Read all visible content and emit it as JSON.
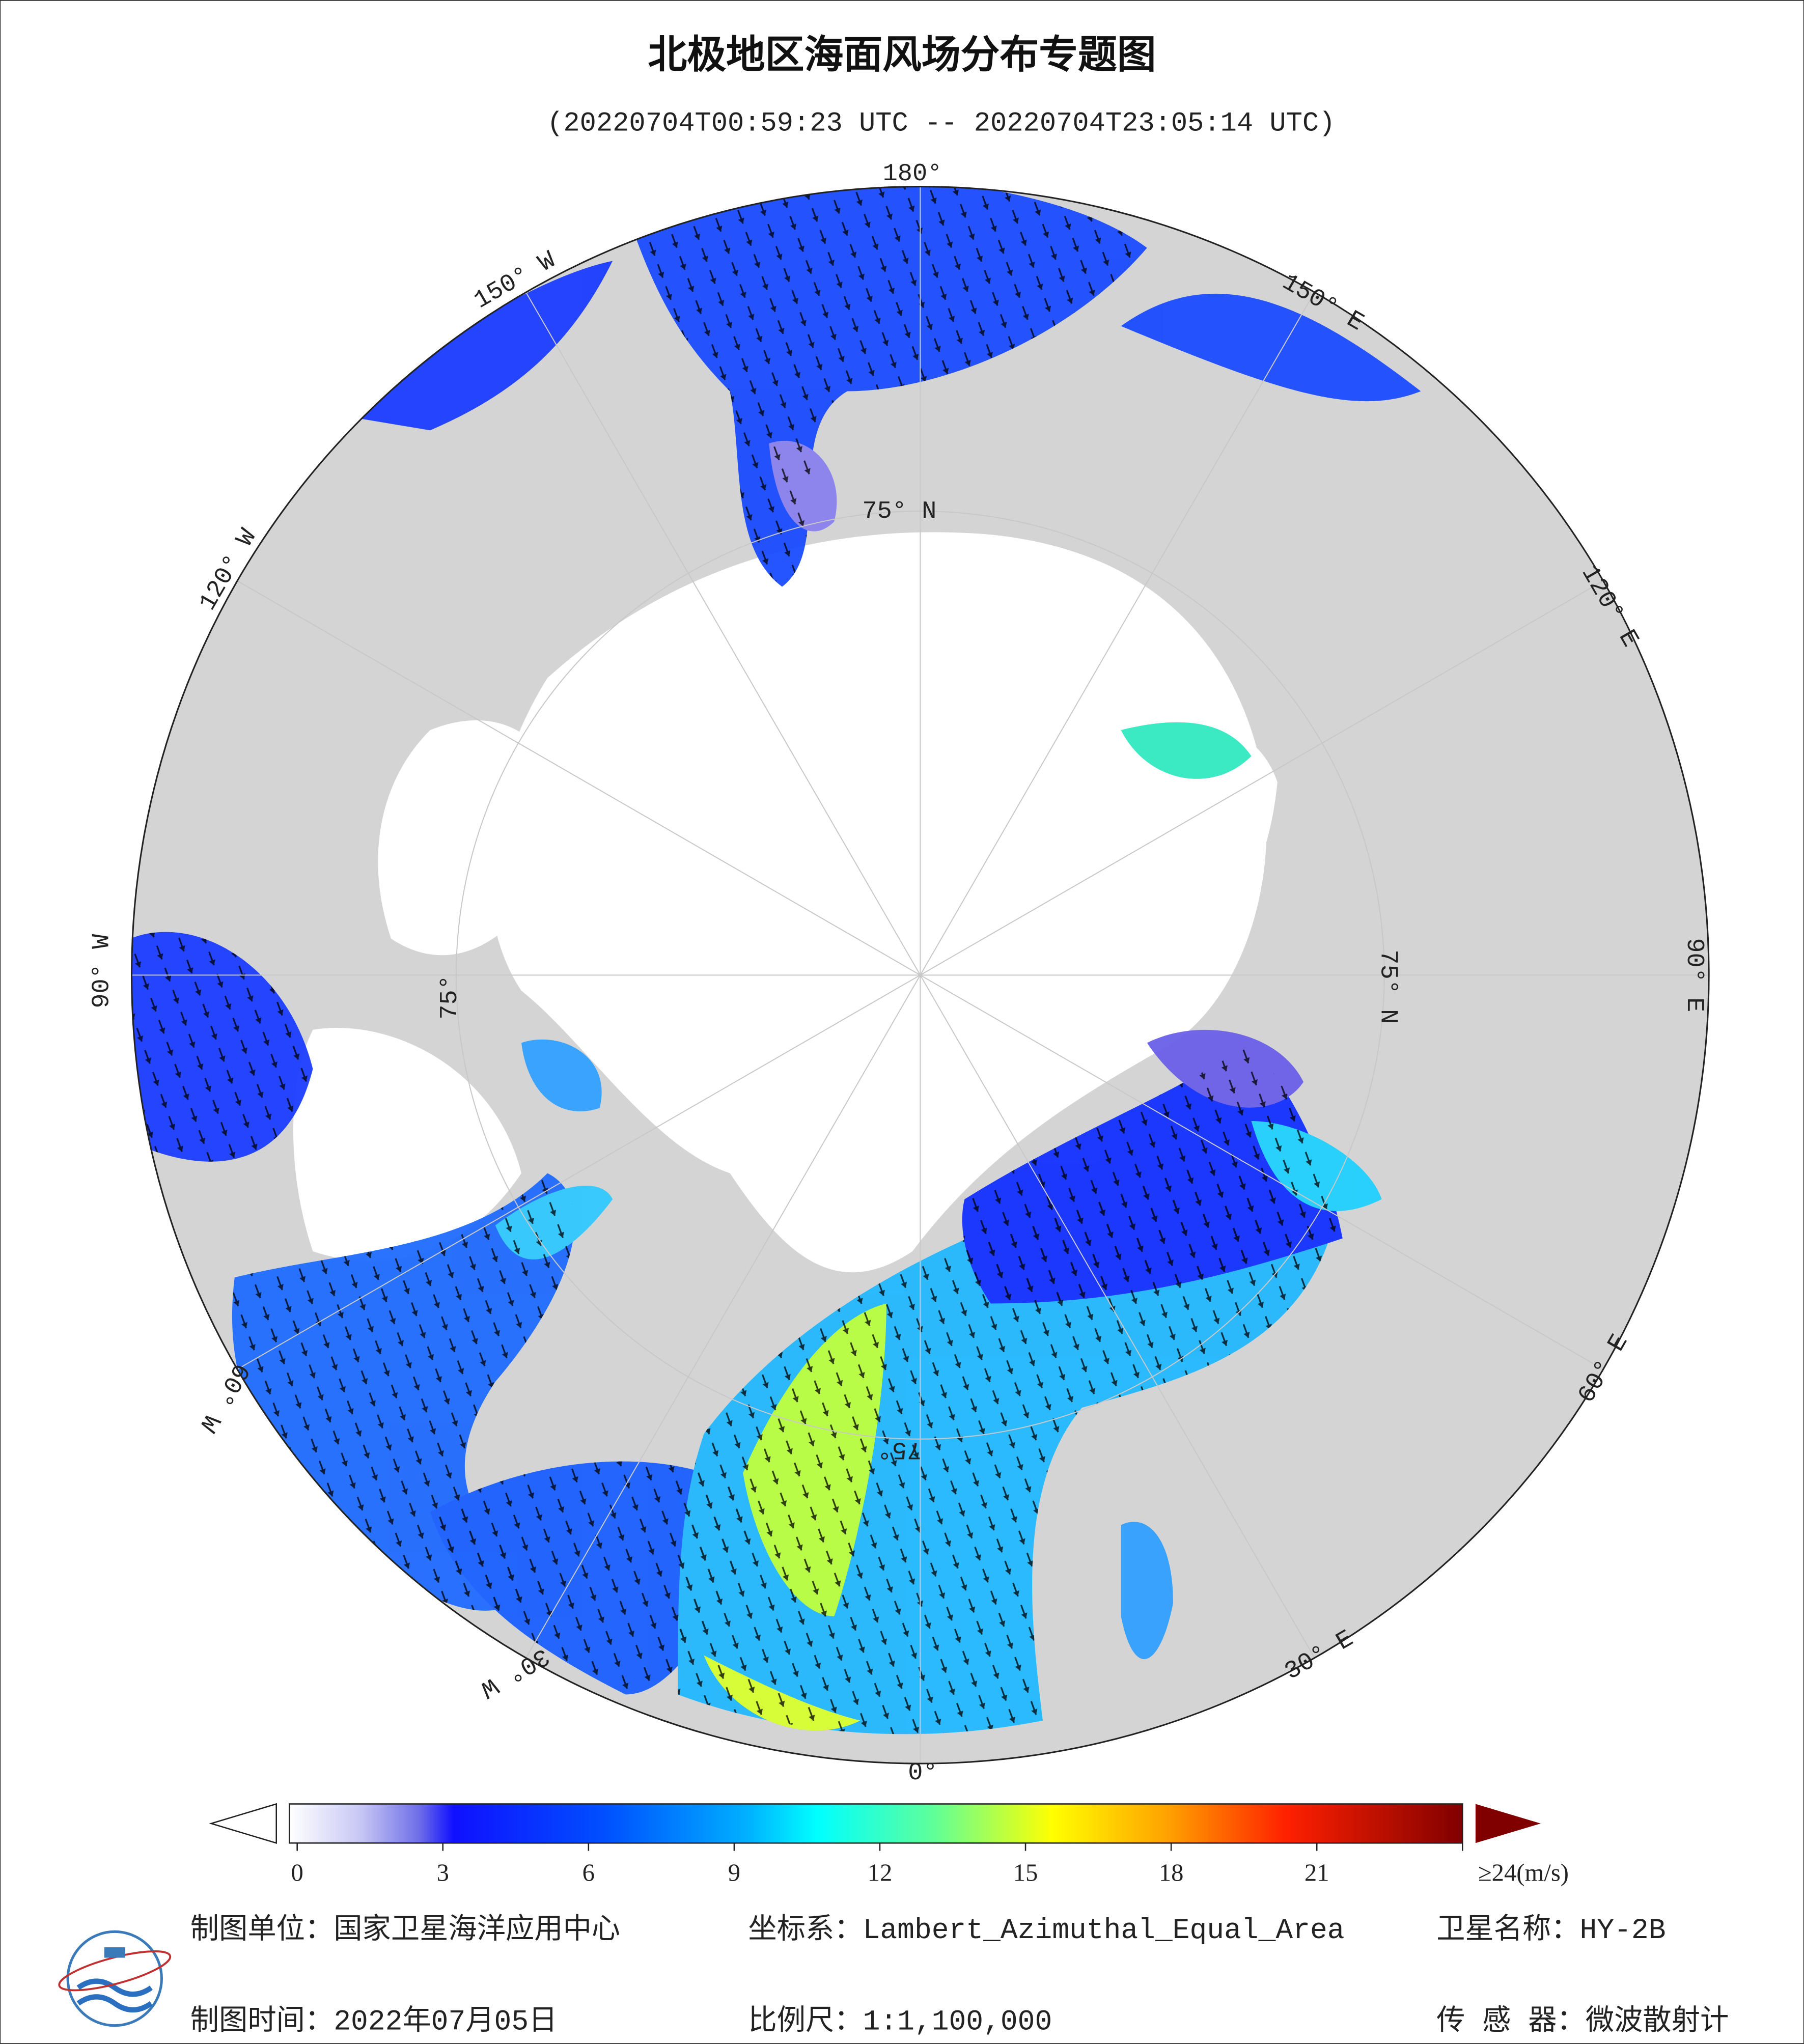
{
  "header": {
    "title": "北极地区海面风场分布专题图",
    "subtitle": "(20220704T00:59:23 UTC -- 20220704T23:05:14 UTC)"
  },
  "map": {
    "longitude_labels": [
      "180°",
      "150° W",
      "120° W",
      "90° W",
      "60° W",
      "30° W",
      "0°",
      "30° E",
      "60° E",
      "90° E",
      "120° E",
      "150° E"
    ],
    "latitude_labels": [
      "75° N",
      "75° N",
      "75°",
      "75°"
    ]
  },
  "colorbar": {
    "range": [
      0,
      24
    ],
    "ticks": [
      0,
      3,
      6,
      9,
      12,
      15,
      18,
      21,
      {
        "value": 24,
        "label": "≥24(m/s)"
      }
    ]
  },
  "footer": {
    "mapping_unit": "制图单位：国家卫星海洋应用中心",
    "coordinate_system": "坐标系：Lambert_Azimuthal_Equal_Area",
    "satellite": "卫星名称：HY-2B",
    "mapping_date": "制图时间：2022年07月05日",
    "scale": "比例尺：1:1,100,000",
    "sensor": "传 感 器：微波散射计"
  }
}
